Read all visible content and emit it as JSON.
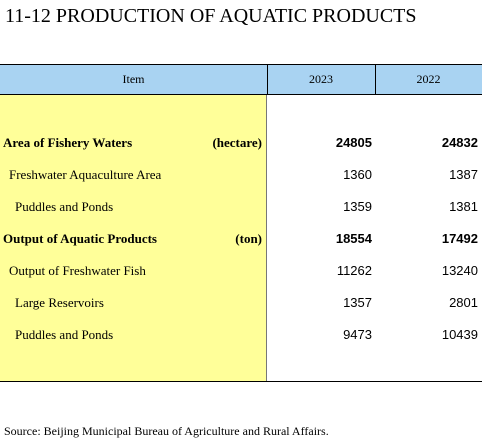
{
  "title": "11-12  PRODUCTION OF AQUATIC PRODUCTS",
  "table": {
    "header": [
      "Item",
      "2023",
      "2022"
    ],
    "rows": [
      {
        "item": "Area of Fishery Waters",
        "unit": "(hectare)",
        "values": [
          24805,
          24832
        ]
      },
      {
        "item": "Freshwater Aquaculture Area",
        "values": [
          1360,
          1387
        ]
      },
      {
        "item": "Puddles and Ponds",
        "values": [
          1359,
          1381
        ]
      },
      {
        "item": "Output of Aquatic Products",
        "unit": "(ton)",
        "values": [
          18554,
          17492
        ]
      },
      {
        "item": "Output of Freshwater Fish",
        "values": [
          11262,
          13240
        ]
      },
      {
        "item": "Large Reservoirs",
        "values": [
          1357,
          2801
        ]
      },
      {
        "item": "Puddles and Ponds",
        "values": [
          9473,
          10439
        ]
      }
    ]
  },
  "source": "Source: Beijing Municipal Bureau of Agriculture and Rural Affairs."
}
